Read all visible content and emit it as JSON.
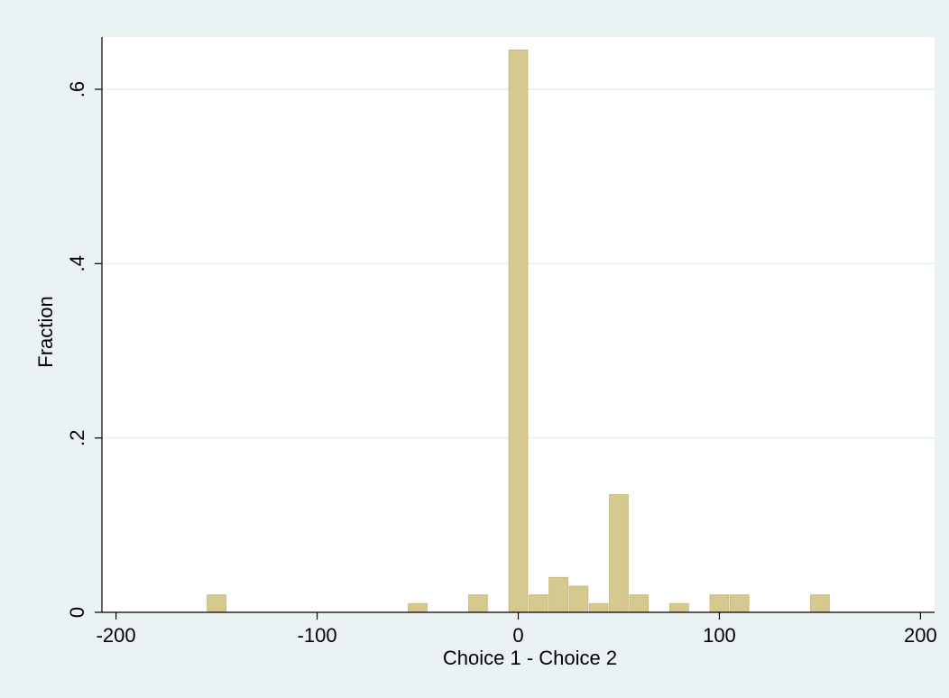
{
  "chart_data": {
    "type": "bar",
    "xlabel": "Choice 1 - Choice 2",
    "ylabel": "Fraction",
    "xlim": [
      -207,
      207
    ],
    "ylim": [
      0,
      0.66
    ],
    "xticks": [
      {
        "value": -200,
        "label": "-200"
      },
      {
        "value": -100,
        "label": "-100"
      },
      {
        "value": 0,
        "label": "0"
      },
      {
        "value": 100,
        "label": "100"
      },
      {
        "value": 200,
        "label": "200"
      }
    ],
    "yticks": [
      {
        "value": 0,
        "label": "0"
      },
      {
        "value": 0.2,
        "label": ".2"
      },
      {
        "value": 0.4,
        "label": ".4"
      },
      {
        "value": 0.6,
        "label": ".6"
      }
    ],
    "bin_width": 10,
    "bins": [
      {
        "start": -155,
        "value": 0.02
      },
      {
        "start": -55,
        "value": 0.01
      },
      {
        "start": -25,
        "value": 0.02
      },
      {
        "start": -5,
        "value": 0.645
      },
      {
        "start": 5,
        "value": 0.02
      },
      {
        "start": 15,
        "value": 0.04
      },
      {
        "start": 25,
        "value": 0.03
      },
      {
        "start": 35,
        "value": 0.01
      },
      {
        "start": 45,
        "value": 0.135
      },
      {
        "start": 55,
        "value": 0.02
      },
      {
        "start": 75,
        "value": 0.01
      },
      {
        "start": 95,
        "value": 0.02
      },
      {
        "start": 105,
        "value": 0.02
      },
      {
        "start": 145,
        "value": 0.02
      }
    ],
    "grid": true,
    "colors": {
      "background": "#eaf2f3",
      "plot_background": "#ffffff",
      "grid": "#eaf2f3",
      "bar_fill": "#d6c98f",
      "bar_stroke": "#c9bb7d",
      "axis": "#000000"
    }
  }
}
